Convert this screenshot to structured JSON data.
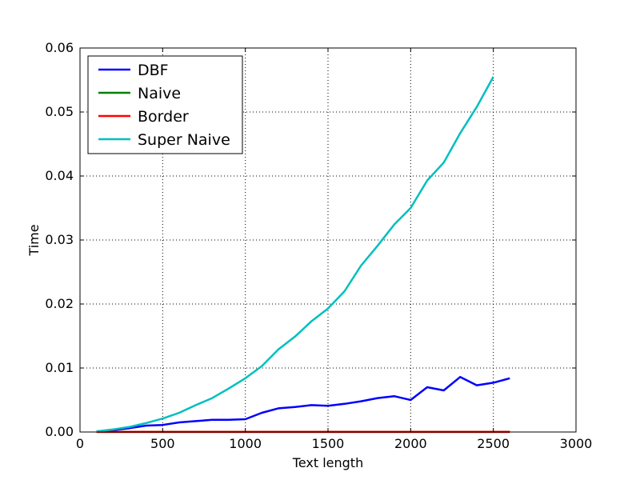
{
  "chart_data": {
    "type": "line",
    "title": "",
    "xlabel": "Text length",
    "ylabel": "Time",
    "xlim": [
      0,
      3000
    ],
    "ylim": [
      0,
      0.06
    ],
    "xticks": [
      0,
      500,
      1000,
      1500,
      2000,
      2500,
      3000
    ],
    "xtick_labels": [
      "0",
      "500",
      "1000",
      "1500",
      "2000",
      "2500",
      "3000"
    ],
    "yticks": [
      0,
      0.01,
      0.02,
      0.03,
      0.04,
      0.05,
      0.06
    ],
    "ytick_labels": [
      "0.00",
      "0.01",
      "0.02",
      "0.03",
      "0.04",
      "0.05",
      "0.06"
    ],
    "grid": true,
    "legend_position": "top-left",
    "series": [
      {
        "name": "DBF",
        "color": "#0000ff",
        "x": [
          100,
          200,
          300,
          400,
          500,
          600,
          700,
          800,
          900,
          1000,
          1100,
          1200,
          1300,
          1400,
          1500,
          1600,
          1700,
          1800,
          1900,
          2000,
          2100,
          2200,
          2300,
          2400,
          2500,
          2600
        ],
        "y": [
          0.0001,
          0.0003,
          0.0006,
          0.001,
          0.0011,
          0.0015,
          0.0017,
          0.0019,
          0.0019,
          0.002,
          0.003,
          0.0037,
          0.0039,
          0.0042,
          0.0041,
          0.0044,
          0.0048,
          0.0053,
          0.0056,
          0.005,
          0.007,
          0.0065,
          0.0086,
          0.0073,
          0.0077,
          0.0084
        ]
      },
      {
        "name": "Naive",
        "color": "#008000",
        "x": [
          100,
          200,
          300,
          400,
          500,
          600,
          700,
          800,
          900,
          1000,
          1100,
          1200,
          1300,
          1400,
          1500,
          1600,
          1700,
          1800,
          1900,
          2000,
          2100,
          2200,
          2300,
          2400,
          2500,
          2600
        ],
        "y": [
          1e-05,
          1e-05,
          1e-05,
          1e-05,
          1e-05,
          1e-05,
          1e-05,
          1e-05,
          1e-05,
          1e-05,
          1e-05,
          1e-05,
          1e-05,
          1e-05,
          1e-05,
          1e-05,
          1e-05,
          1e-05,
          1e-05,
          1e-05,
          1e-05,
          1e-05,
          1e-05,
          1e-05,
          1e-05,
          1e-05
        ]
      },
      {
        "name": "Border",
        "color": "#ff0000",
        "x": [
          100,
          200,
          300,
          400,
          500,
          600,
          700,
          800,
          900,
          1000,
          1100,
          1200,
          1300,
          1400,
          1500,
          1600,
          1700,
          1800,
          1900,
          2000,
          2100,
          2200,
          2300,
          2400,
          2500,
          2600
        ],
        "y": [
          1e-05,
          1e-05,
          1e-05,
          1e-05,
          1e-05,
          1e-05,
          1e-05,
          1e-05,
          1e-05,
          1e-05,
          1e-05,
          1e-05,
          1e-05,
          1e-05,
          1e-05,
          1e-05,
          1e-05,
          1e-05,
          1e-05,
          1e-05,
          1e-05,
          1e-05,
          1e-05,
          1e-05,
          1e-05,
          1e-05
        ]
      },
      {
        "name": "Super Naive",
        "color": "#00bfbf",
        "x": [
          100,
          200,
          300,
          400,
          500,
          600,
          700,
          800,
          900,
          1000,
          1100,
          1200,
          1300,
          1400,
          1500,
          1600,
          1700,
          1800,
          1900,
          2000,
          2100,
          2200,
          2300,
          2400,
          2500
        ],
        "y": [
          0.0001,
          0.0004,
          0.0008,
          0.0014,
          0.0021,
          0.003,
          0.0042,
          0.0053,
          0.0068,
          0.0084,
          0.0103,
          0.0129,
          0.0149,
          0.0173,
          0.0193,
          0.022,
          0.026,
          0.0291,
          0.0324,
          0.035,
          0.0393,
          0.0421,
          0.0467,
          0.0508,
          0.0555
        ]
      }
    ]
  }
}
